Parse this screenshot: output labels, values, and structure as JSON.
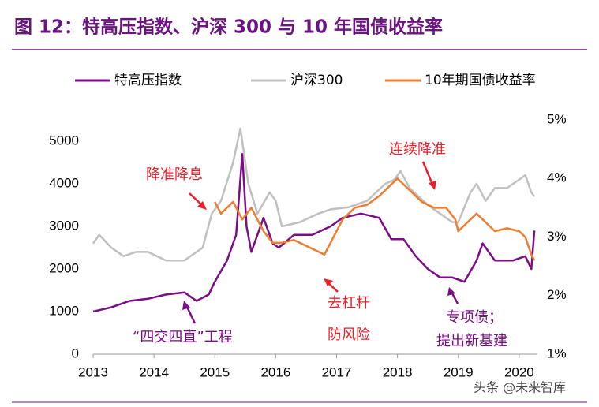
{
  "chart_data": {
    "type": "line",
    "title": "图 12：特高压指数、沪深 300 与 10 年国债收益率",
    "xlim": [
      2013,
      2020.3
    ],
    "xticks": [
      2013,
      2014,
      2015,
      2016,
      2017,
      2018,
      2019,
      2020
    ],
    "ylim": [
      0,
      5500
    ],
    "yticks": [
      0,
      1000,
      2000,
      3000,
      4000,
      5000
    ],
    "y2lim": [
      1,
      5
    ],
    "y2ticks": [
      {
        "value": 1,
        "label": "1%"
      },
      {
        "value": 2,
        "label": "2%"
      },
      {
        "value": 3,
        "label": "3%"
      },
      {
        "value": 4,
        "label": "4%"
      },
      {
        "value": 5,
        "label": "5%"
      }
    ],
    "series": [
      {
        "name": "特高压指数",
        "color": "#7b0d86",
        "x": [
          2013.0,
          2013.3,
          2013.6,
          2013.9,
          2014.2,
          2014.5,
          2014.7,
          2014.9,
          2015.0,
          2015.2,
          2015.35,
          2015.45,
          2015.52,
          2015.6,
          2015.8,
          2015.95,
          2016.05,
          2016.3,
          2016.6,
          2016.9,
          2017.1,
          2017.4,
          2017.7,
          2017.9,
          2018.1,
          2018.3,
          2018.5,
          2018.7,
          2018.9,
          2019.1,
          2019.3,
          2019.4,
          2019.6,
          2019.9,
          2020.1,
          2020.2,
          2020.25
        ],
        "values": [
          1000,
          1100,
          1250,
          1300,
          1400,
          1450,
          1250,
          1400,
          1700,
          2200,
          2800,
          4700,
          3000,
          2400,
          3200,
          2600,
          2500,
          2800,
          2800,
          3000,
          3200,
          3300,
          3200,
          2700,
          2700,
          2300,
          2000,
          1800,
          1800,
          1700,
          2200,
          2600,
          2200,
          2200,
          2300,
          2000,
          2900
        ]
      },
      {
        "name": "沪深300",
        "color": "#c0c0c0",
        "x": [
          2013.0,
          2013.1,
          2013.3,
          2013.5,
          2013.7,
          2013.9,
          2014.2,
          2014.5,
          2014.8,
          2014.95,
          2015.1,
          2015.3,
          2015.42,
          2015.55,
          2015.7,
          2015.9,
          2016.0,
          2016.1,
          2016.4,
          2016.7,
          2016.9,
          2017.2,
          2017.5,
          2017.8,
          2017.95,
          2018.05,
          2018.2,
          2018.5,
          2018.7,
          2018.9,
          2019.0,
          2019.2,
          2019.3,
          2019.45,
          2019.6,
          2019.8,
          2020.0,
          2020.1,
          2020.2,
          2020.25
        ],
        "values": [
          2600,
          2800,
          2500,
          2300,
          2400,
          2400,
          2200,
          2200,
          2500,
          3300,
          3600,
          4500,
          5300,
          4000,
          3300,
          3800,
          3600,
          3000,
          3100,
          3300,
          3400,
          3450,
          3600,
          4000,
          4100,
          4300,
          3900,
          3500,
          3300,
          3100,
          3100,
          3800,
          4000,
          3600,
          3900,
          3900,
          4100,
          4200,
          3800,
          3700
        ]
      },
      {
        "name": "10年期国债收益率",
        "color": "#ed7d31",
        "axis": "y2",
        "x": [
          2015.0,
          2015.1,
          2015.3,
          2015.45,
          2015.6,
          2015.8,
          2015.95,
          2016.1,
          2016.3,
          2016.6,
          2016.8,
          2016.95,
          2017.1,
          2017.3,
          2017.5,
          2017.7,
          2017.9,
          2018.0,
          2018.2,
          2018.4,
          2018.6,
          2018.8,
          2018.95,
          2019.0,
          2019.1,
          2019.3,
          2019.45,
          2019.6,
          2019.8,
          2020.0,
          2020.1,
          2020.2,
          2020.25
        ],
        "values": [
          3.6,
          3.4,
          3.6,
          3.3,
          3.5,
          3.1,
          2.9,
          2.9,
          2.95,
          2.8,
          2.7,
          3.0,
          3.3,
          3.5,
          3.55,
          3.7,
          3.9,
          4.0,
          3.8,
          3.6,
          3.5,
          3.5,
          3.3,
          3.1,
          3.2,
          3.4,
          3.25,
          3.1,
          3.15,
          3.1,
          3.0,
          2.7,
          2.6
        ]
      }
    ],
    "annotations": [
      "降准降息",
      "去杠杆",
      "防风险",
      "连续降准",
      "“四交四直”工程",
      "专项债；",
      "提出新基建"
    ],
    "watermark": "头条 @未来智库"
  }
}
